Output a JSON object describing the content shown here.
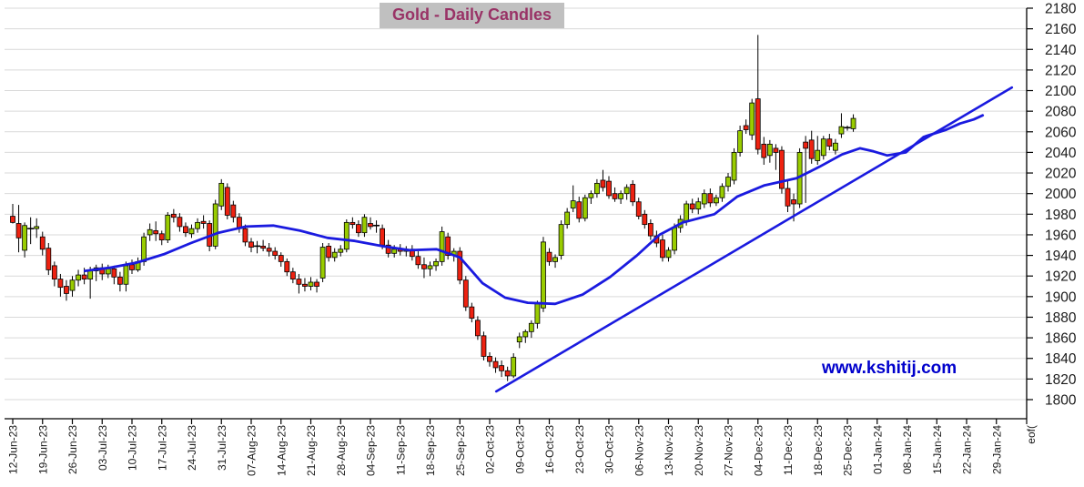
{
  "title": "Gold - Daily Candles",
  "watermark": "www.kshitij.com",
  "chart_data": {
    "type": "candlestick",
    "title": "Gold - Daily Candles",
    "grid": "horizontal-only",
    "legend": "none",
    "y_axis": {
      "side": "right",
      "min": 1800,
      "max": 2180,
      "step": 20,
      "tick_labels": [
        2180,
        2160,
        2140,
        2120,
        2100,
        2080,
        2060,
        2040,
        2020,
        2000,
        1980,
        1960,
        1940,
        1920,
        1900,
        1880,
        1860,
        1840,
        1820,
        1800
      ]
    },
    "x_axis": {
      "tick_labels": [
        "12-Jun-23",
        "19-Jun-23",
        "26-Jun-23",
        "03-Jul-23",
        "10-Jul-23",
        "17-Jul-23",
        "24-Jul-23",
        "31-Jul-23",
        "07-Aug-23",
        "14-Aug-23",
        "21-Aug-23",
        "28-Aug-23",
        "04-Sep-23",
        "11-Sep-23",
        "18-Sep-23",
        "25-Sep-23",
        "02-Oct-23",
        "09-Oct-23",
        "16-Oct-23",
        "23-Oct-23",
        "30-Oct-23",
        "06-Nov-23",
        "13-Nov-23",
        "20-Nov-23",
        "27-Nov-23",
        "04-Dec-23",
        "11-Dec-23",
        "18-Dec-23",
        "25-Dec-23",
        "01-Jan-24",
        "08-Jan-24",
        "15-Jan-24",
        "22-Jan-24",
        "29-Jan-24"
      ],
      "candles_per_tick": 5,
      "end_label": "eof("
    },
    "series_format": [
      "date",
      "open",
      "high",
      "low",
      "close"
    ],
    "candles": [
      [
        "12-Jun-23",
        1978,
        1990,
        1971,
        1972
      ],
      [
        "13-Jun-23",
        1971,
        1989,
        1943,
        1957
      ],
      [
        "14-Jun-23",
        1945,
        1972,
        1938,
        1969
      ],
      [
        "15-Jun-23",
        1967,
        1977,
        1951,
        1966
      ],
      [
        "16-Jun-23",
        1966,
        1976,
        1957,
        1968
      ],
      [
        "19-Jun-23",
        1958,
        1963,
        1940,
        1946
      ],
      [
        "20-Jun-23",
        1947,
        1952,
        1921,
        1926
      ],
      [
        "21-Jun-23",
        1930,
        1934,
        1910,
        1917
      ],
      [
        "22-Jun-23",
        1917,
        1922,
        1900,
        1909
      ],
      [
        "23-Jun-23",
        1910,
        1916,
        1896,
        1903
      ],
      [
        "26-Jun-23",
        1906,
        1920,
        1900,
        1916
      ],
      [
        "27-Jun-23",
        1916,
        1926,
        1910,
        1921
      ],
      [
        "28-Jun-23",
        1921,
        1928,
        1912,
        1917
      ],
      [
        "29-Jun-23",
        1917,
        1929,
        1898,
        1925
      ],
      [
        "30-Jun-23",
        1925,
        1931,
        1915,
        1928
      ],
      [
        "03-Jul-23",
        1928,
        1932,
        1916,
        1922
      ],
      [
        "04-Jul-23",
        1922,
        1931,
        1918,
        1927
      ],
      [
        "05-Jul-23",
        1927,
        1930,
        1912,
        1919
      ],
      [
        "06-Jul-23",
        1919,
        1924,
        1905,
        1912
      ],
      [
        "07-Jul-23",
        1912,
        1934,
        1905,
        1930
      ],
      [
        "10-Jul-23",
        1931,
        1936,
        1922,
        1926
      ],
      [
        "11-Jul-23",
        1926,
        1938,
        1924,
        1934
      ],
      [
        "12-Jul-23",
        1934,
        1962,
        1930,
        1958
      ],
      [
        "13-Jul-23",
        1960,
        1971,
        1954,
        1965
      ],
      [
        "14-Jul-23",
        1964,
        1973,
        1954,
        1961
      ],
      [
        "17-Jul-23",
        1961,
        1964,
        1950,
        1955
      ],
      [
        "18-Jul-23",
        1955,
        1982,
        1952,
        1979
      ],
      [
        "19-Jul-23",
        1980,
        1985,
        1972,
        1977
      ],
      [
        "20-Jul-23",
        1977,
        1981,
        1963,
        1968
      ],
      [
        "21-Jul-23",
        1968,
        1972,
        1958,
        1962
      ],
      [
        "24-Jul-23",
        1961,
        1970,
        1957,
        1966
      ],
      [
        "25-Jul-23",
        1966,
        1976,
        1962,
        1972
      ],
      [
        "26-Jul-23",
        1973,
        1979,
        1966,
        1971
      ],
      [
        "27-Jul-23",
        1971,
        1974,
        1944,
        1949
      ],
      [
        "28-Jul-23",
        1949,
        1994,
        1946,
        1990
      ],
      [
        "31-Jul-23",
        1988,
        2014,
        1984,
        2010
      ],
      [
        "01-Aug-23",
        2006,
        2010,
        1975,
        1979
      ],
      [
        "02-Aug-23",
        1989,
        1993,
        1972,
        1977
      ],
      [
        "03-Aug-23",
        1977,
        1981,
        1962,
        1966
      ],
      [
        "04-Aug-23",
        1966,
        1970,
        1949,
        1953
      ],
      [
        "07-Aug-23",
        1953,
        1957,
        1943,
        1948
      ],
      [
        "08-Aug-23",
        1948,
        1954,
        1942,
        1949
      ],
      [
        "09-Aug-23",
        1949,
        1955,
        1944,
        1947
      ],
      [
        "10-Aug-23",
        1947,
        1952,
        1939,
        1944
      ],
      [
        "11-Aug-23",
        1944,
        1948,
        1936,
        1940
      ],
      [
        "14-Aug-23",
        1940,
        1943,
        1929,
        1934
      ],
      [
        "15-Aug-23",
        1934,
        1937,
        1920,
        1924
      ],
      [
        "16-Aug-23",
        1924,
        1928,
        1913,
        1917
      ],
      [
        "17-Aug-23",
        1917,
        1922,
        1903,
        1912
      ],
      [
        "18-Aug-23",
        1912,
        1918,
        1905,
        1910
      ],
      [
        "21-Aug-23",
        1910,
        1919,
        1906,
        1914
      ],
      [
        "22-Aug-23",
        1914,
        1917,
        1904,
        1910
      ],
      [
        "23-Aug-23",
        1918,
        1952,
        1914,
        1948
      ],
      [
        "24-Aug-23",
        1949,
        1952,
        1934,
        1938
      ],
      [
        "25-Aug-23",
        1938,
        1947,
        1934,
        1943
      ],
      [
        "28-Aug-23",
        1943,
        1950,
        1939,
        1946
      ],
      [
        "29-Aug-23",
        1946,
        1975,
        1943,
        1972
      ],
      [
        "30-Aug-23",
        1972,
        1977,
        1966,
        1970
      ],
      [
        "31-Aug-23",
        1970,
        1974,
        1958,
        1962
      ],
      [
        "01-Sep-23",
        1962,
        1980,
        1958,
        1977
      ],
      [
        "04-Sep-23",
        1971,
        1977,
        1965,
        1968
      ],
      [
        "05-Sep-23",
        1968,
        1974,
        1962,
        1969
      ],
      [
        "06-Sep-23",
        1966,
        1970,
        1946,
        1950
      ],
      [
        "07-Sep-23",
        1950,
        1955,
        1938,
        1942
      ],
      [
        "08-Sep-23",
        1942,
        1950,
        1938,
        1946
      ],
      [
        "11-Sep-23",
        1946,
        1951,
        1940,
        1944
      ],
      [
        "12-Sep-23",
        1944,
        1949,
        1939,
        1946
      ],
      [
        "13-Sep-23",
        1946,
        1950,
        1935,
        1939
      ],
      [
        "14-Sep-23",
        1939,
        1944,
        1927,
        1931
      ],
      [
        "15-Sep-23",
        1931,
        1938,
        1918,
        1927
      ],
      [
        "18-Sep-23",
        1927,
        1934,
        1920,
        1930
      ],
      [
        "19-Sep-23",
        1930,
        1937,
        1925,
        1934
      ],
      [
        "20-Sep-23",
        1934,
        1968,
        1930,
        1963
      ],
      [
        "21-Sep-23",
        1958,
        1962,
        1936,
        1940
      ],
      [
        "22-Sep-23",
        1940,
        1947,
        1934,
        1944
      ],
      [
        "25-Sep-23",
        1944,
        1948,
        1912,
        1916
      ],
      [
        "26-Sep-23",
        1916,
        1920,
        1886,
        1890
      ],
      [
        "27-Sep-23",
        1890,
        1894,
        1875,
        1879
      ],
      [
        "28-Sep-23",
        1877,
        1881,
        1858,
        1862
      ],
      [
        "29-Sep-23",
        1862,
        1866,
        1838,
        1842
      ],
      [
        "02-Oct-23",
        1842,
        1846,
        1832,
        1837
      ],
      [
        "03-Oct-23",
        1837,
        1841,
        1826,
        1831
      ],
      [
        "04-Oct-23",
        1833,
        1838,
        1822,
        1828
      ],
      [
        "05-Oct-23",
        1828,
        1832,
        1818,
        1823
      ],
      [
        "06-Oct-23",
        1823,
        1845,
        1821,
        1841
      ],
      [
        "09-Oct-23",
        1856,
        1865,
        1850,
        1861
      ],
      [
        "10-Oct-23",
        1861,
        1868,
        1855,
        1866
      ],
      [
        "11-Oct-23",
        1866,
        1877,
        1860,
        1874
      ],
      [
        "12-Oct-23",
        1874,
        1896,
        1869,
        1893
      ],
      [
        "13-Oct-23",
        1889,
        1958,
        1885,
        1953
      ],
      [
        "16-Oct-23",
        1943,
        1947,
        1930,
        1934
      ],
      [
        "17-Oct-23",
        1934,
        1941,
        1928,
        1938
      ],
      [
        "18-Oct-23",
        1940,
        1974,
        1936,
        1970
      ],
      [
        "19-Oct-23",
        1970,
        1986,
        1966,
        1982
      ],
      [
        "20-Oct-23",
        1986,
        2008,
        1982,
        1993
      ],
      [
        "23-Oct-23",
        1992,
        1997,
        1972,
        1976
      ],
      [
        "24-Oct-23",
        1976,
        1999,
        1973,
        1996
      ],
      [
        "25-Oct-23",
        1996,
        2003,
        1990,
        2000
      ],
      [
        "26-Oct-23",
        2000,
        2014,
        1996,
        2010
      ],
      [
        "27-Oct-23",
        2013,
        2023,
        2002,
        2006
      ],
      [
        "30-Oct-23",
        2012,
        2017,
        1995,
        1998
      ],
      [
        "31-Oct-23",
        2000,
        2006,
        1992,
        1995
      ],
      [
        "01-Nov-23",
        1995,
        2003,
        1990,
        2000
      ],
      [
        "02-Nov-23",
        2000,
        2009,
        1994,
        2006
      ],
      [
        "03-Nov-23",
        2009,
        2013,
        1988,
        1992
      ],
      [
        "06-Nov-23",
        1992,
        1996,
        1975,
        1978
      ],
      [
        "07-Nov-23",
        1980,
        1984,
        1966,
        1970
      ],
      [
        "08-Nov-23",
        1971,
        1975,
        1955,
        1959
      ],
      [
        "09-Nov-23",
        1959,
        1964,
        1948,
        1952
      ],
      [
        "10-Nov-23",
        1955,
        1960,
        1934,
        1938
      ],
      [
        "13-Nov-23",
        1938,
        1948,
        1934,
        1945
      ],
      [
        "14-Nov-23",
        1945,
        1971,
        1941,
        1967
      ],
      [
        "15-Nov-23",
        1967,
        1979,
        1962,
        1975
      ],
      [
        "16-Nov-23",
        1973,
        1993,
        1969,
        1990
      ],
      [
        "17-Nov-23",
        1990,
        1995,
        1981,
        1985
      ],
      [
        "20-Nov-23",
        1985,
        1996,
        1980,
        1992
      ],
      [
        "21-Nov-23",
        1990,
        2004,
        1986,
        2000
      ],
      [
        "22-Nov-23",
        2000,
        2005,
        1987,
        1991
      ],
      [
        "23-Nov-23",
        1991,
        1999,
        1988,
        1996
      ],
      [
        "24-Nov-23",
        1996,
        2010,
        1992,
        2007
      ],
      [
        "27-Nov-23",
        2007,
        2020,
        2002,
        2016
      ],
      [
        "28-Nov-23",
        2013,
        2044,
        2009,
        2040
      ],
      [
        "29-Nov-23",
        2040,
        2066,
        2036,
        2061
      ],
      [
        "30-Nov-23",
        2066,
        2072,
        2058,
        2062
      ],
      [
        "01-Dec-23",
        2057,
        2092,
        2052,
        2088
      ],
      [
        "04-Dec-23",
        2092,
        2154,
        2038,
        2043
      ],
      [
        "05-Dec-23",
        2048,
        2055,
        2028,
        2035
      ],
      [
        "06-Dec-23",
        2037,
        2052,
        2030,
        2048
      ],
      [
        "07-Dec-23",
        2044,
        2048,
        2023,
        2040
      ],
      [
        "08-Dec-23",
        2042,
        2046,
        2000,
        2005
      ],
      [
        "11-Dec-23",
        2005,
        2012,
        1982,
        1988
      ],
      [
        "12-Dec-23",
        1994,
        2000,
        1973,
        1990
      ],
      [
        "13-Dec-23",
        1990,
        2044,
        1986,
        2040
      ],
      [
        "14-Dec-23",
        2050,
        2056,
        1991,
        2044
      ],
      [
        "15-Dec-23",
        2052,
        2061,
        2029,
        2034
      ],
      [
        "18-Dec-23",
        2032,
        2056,
        2028,
        2042
      ],
      [
        "19-Dec-23",
        2037,
        2056,
        2033,
        2053
      ],
      [
        "20-Dec-23",
        2053,
        2058,
        2042,
        2046
      ],
      [
        "21-Dec-23",
        2042,
        2053,
        2038,
        2049
      ],
      [
        "22-Dec-23",
        2058,
        2078,
        2054,
        2065
      ],
      [
        "25-Dec-23",
        2063,
        2066,
        2061,
        2064
      ],
      [
        "26-Dec-23",
        2063,
        2077,
        2060,
        2073
      ]
    ],
    "ma_line": {
      "name": "moving-average",
      "points_slot_price": [
        [
          12.1,
          1925
        ],
        [
          16.2,
          1928
        ],
        [
          20.8,
          1933
        ],
        [
          25.3,
          1941
        ],
        [
          29.9,
          1952
        ],
        [
          34.5,
          1962
        ],
        [
          39.1,
          1968
        ],
        [
          43.7,
          1969
        ],
        [
          48.2,
          1964
        ],
        [
          52.8,
          1957
        ],
        [
          57.4,
          1954
        ],
        [
          62.0,
          1949
        ],
        [
          66.6,
          1945
        ],
        [
          71.1,
          1946
        ],
        [
          75.0,
          1938
        ],
        [
          78.8,
          1913
        ],
        [
          82.6,
          1899
        ],
        [
          86.4,
          1894
        ],
        [
          91.0,
          1893
        ],
        [
          95.6,
          1902
        ],
        [
          100.2,
          1919
        ],
        [
          104.7,
          1940
        ],
        [
          108.5,
          1960
        ],
        [
          112.4,
          1972
        ],
        [
          117.7,
          1980
        ],
        [
          121.5,
          1997
        ],
        [
          126.1,
          2008
        ],
        [
          131.5,
          2015
        ],
        [
          135.3,
          2026
        ],
        [
          139.1,
          2038
        ],
        [
          142.1,
          2044
        ],
        [
          144.4,
          2041
        ],
        [
          146.7,
          2037
        ],
        [
          149.8,
          2040
        ],
        [
          152.8,
          2055
        ],
        [
          156.6,
          2062
        ],
        [
          158.9,
          2068
        ],
        [
          161.2,
          2072
        ],
        [
          162.7,
          2076
        ]
      ]
    },
    "trend_line": {
      "name": "rising-trendline",
      "points_slot_price": [
        [
          81.1,
          1808
        ],
        [
          167.6,
          2103
        ]
      ]
    },
    "colors": {
      "up": "#99CC00",
      "down": "#EE2211",
      "wick": "#000000",
      "line_blue": "#1A1ADF",
      "grid": "#D9D9D9",
      "axis": "#000000",
      "title_text": "#993366",
      "title_bg": "#C0C0C0",
      "watermark": "#0000CC"
    }
  }
}
